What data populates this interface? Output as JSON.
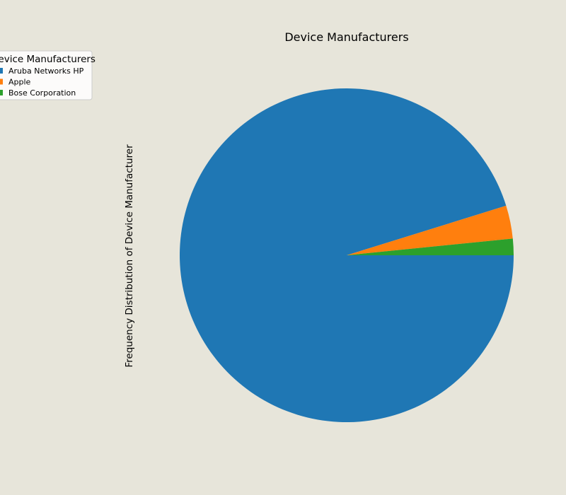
{
  "chart_data": {
    "type": "pie",
    "title": "Device Manufacturers",
    "ylabel": "Frequency Distribution of Device Manufacturer",
    "legend": {
      "title": "Device Manufacturers",
      "placement": "top-left"
    },
    "series": [
      {
        "name": "Aruba Networks HP",
        "value": 95.2,
        "color": "#1f77b4"
      },
      {
        "name": "Apple",
        "value": 3.2,
        "color": "#ff7f0e"
      },
      {
        "name": "Bose Corporation",
        "value": 1.6,
        "color": "#2ca02c"
      }
    ],
    "start_angle_deg": 0,
    "direction": "clockwise"
  }
}
